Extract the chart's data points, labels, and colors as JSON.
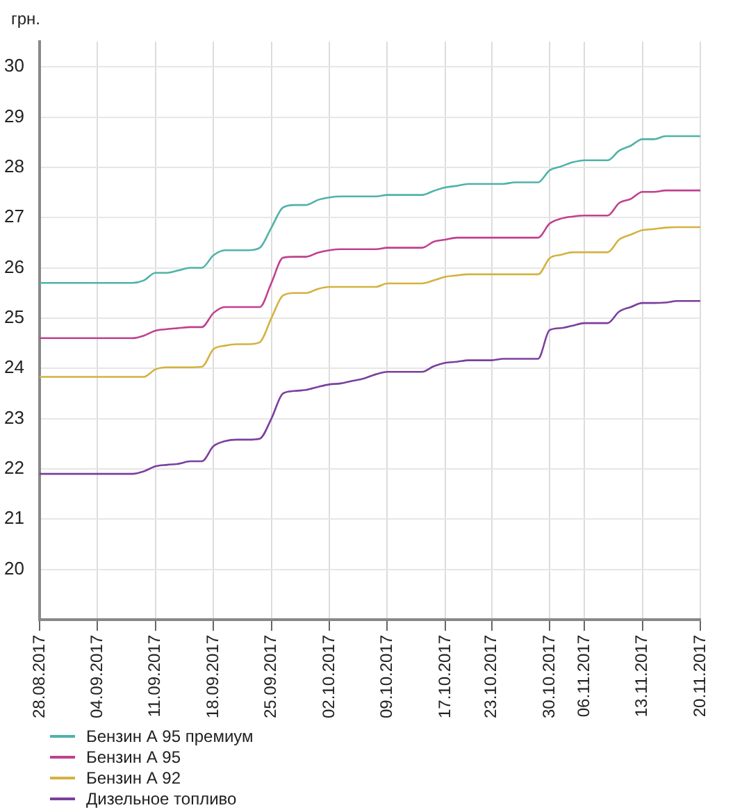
{
  "chart_data": {
    "type": "line",
    "ylabel": "грн.",
    "categories": [
      "28.08.2017",
      null,
      null,
      null,
      null,
      "04.09.2017",
      null,
      null,
      null,
      null,
      "11.09.2017",
      null,
      null,
      null,
      null,
      "18.09.2017",
      null,
      null,
      null,
      null,
      "25.09.2017",
      null,
      null,
      null,
      null,
      "02.10.2017",
      null,
      null,
      null,
      null,
      "09.10.2017",
      null,
      null,
      null,
      null,
      "17.10.2017",
      null,
      null,
      null,
      "23.10.2017",
      null,
      null,
      null,
      null,
      "30.10.2017",
      null,
      null,
      "06.11.2017",
      null,
      null,
      null,
      null,
      "13.11.2017",
      null,
      null,
      null,
      null,
      "20.11.2017"
    ],
    "series": [
      {
        "name": "Бензин А 95 премиум",
        "color": "#4fb3a9",
        "values": [
          25.7,
          25.7,
          25.7,
          25.7,
          25.7,
          25.7,
          25.7,
          25.7,
          25.7,
          25.75,
          25.9,
          25.9,
          25.95,
          26.0,
          26.0,
          26.25,
          26.35,
          26.35,
          26.35,
          26.4,
          26.8,
          27.2,
          27.25,
          27.25,
          27.35,
          27.4,
          27.42,
          27.42,
          27.42,
          27.42,
          27.45,
          27.45,
          27.45,
          27.45,
          27.53,
          27.6,
          27.63,
          27.67,
          27.67,
          27.67,
          27.67,
          27.7,
          27.7,
          27.7,
          27.94,
          28.02,
          28.1,
          28.14,
          28.14,
          28.14,
          28.33,
          28.43,
          28.56,
          28.56,
          28.62,
          28.62,
          28.62,
          28.62
        ]
      },
      {
        "name": "Бензин А 95",
        "color": "#c0408f",
        "values": [
          24.6,
          24.6,
          24.6,
          24.6,
          24.6,
          24.6,
          24.6,
          24.6,
          24.6,
          24.65,
          24.75,
          24.78,
          24.8,
          24.82,
          24.82,
          25.1,
          25.22,
          25.22,
          25.22,
          25.22,
          25.7,
          26.2,
          26.22,
          26.22,
          26.3,
          26.35,
          26.37,
          26.37,
          26.37,
          26.37,
          26.4,
          26.4,
          26.4,
          26.4,
          26.52,
          26.56,
          26.6,
          26.6,
          26.6,
          26.6,
          26.6,
          26.6,
          26.6,
          26.6,
          26.88,
          26.98,
          27.02,
          27.04,
          27.04,
          27.04,
          27.29,
          27.37,
          27.51,
          27.51,
          27.54,
          27.54,
          27.54,
          27.54
        ]
      },
      {
        "name": "Бензин А 92",
        "color": "#d4b23f",
        "values": [
          23.83,
          23.83,
          23.83,
          23.83,
          23.83,
          23.83,
          23.83,
          23.83,
          23.83,
          23.83,
          23.98,
          24.02,
          24.02,
          24.02,
          24.03,
          24.38,
          24.45,
          24.48,
          24.48,
          24.52,
          25.0,
          25.45,
          25.5,
          25.5,
          25.58,
          25.62,
          25.62,
          25.62,
          25.62,
          25.62,
          25.69,
          25.69,
          25.69,
          25.69,
          25.75,
          25.82,
          25.85,
          25.87,
          25.87,
          25.87,
          25.87,
          25.87,
          25.87,
          25.87,
          26.19,
          26.26,
          26.31,
          26.31,
          26.31,
          26.31,
          26.56,
          26.66,
          26.75,
          26.77,
          26.8,
          26.81,
          26.81,
          26.81
        ]
      },
      {
        "name": "Дизельное топливо",
        "color": "#7b3f9e",
        "values": [
          21.9,
          21.9,
          21.9,
          21.9,
          21.9,
          21.9,
          21.9,
          21.9,
          21.9,
          21.95,
          22.05,
          22.08,
          22.1,
          22.15,
          22.15,
          22.45,
          22.55,
          22.58,
          22.58,
          22.6,
          23.0,
          23.5,
          23.55,
          23.57,
          23.63,
          23.68,
          23.7,
          23.75,
          23.8,
          23.88,
          23.93,
          23.93,
          23.93,
          23.93,
          24.04,
          24.11,
          24.13,
          24.16,
          24.16,
          24.16,
          24.19,
          24.19,
          24.19,
          24.19,
          24.76,
          24.8,
          24.85,
          24.9,
          24.9,
          24.9,
          25.13,
          25.22,
          25.3,
          25.3,
          25.31,
          25.34,
          25.34,
          25.34
        ]
      }
    ],
    "ylim": [
      19,
      30.5
    ],
    "yticks": [
      20,
      21,
      22,
      23,
      24,
      25,
      26,
      27,
      28,
      29,
      30
    ],
    "grid": true,
    "legend": "bottom left",
    "marker": "none",
    "line_style": "solid"
  }
}
